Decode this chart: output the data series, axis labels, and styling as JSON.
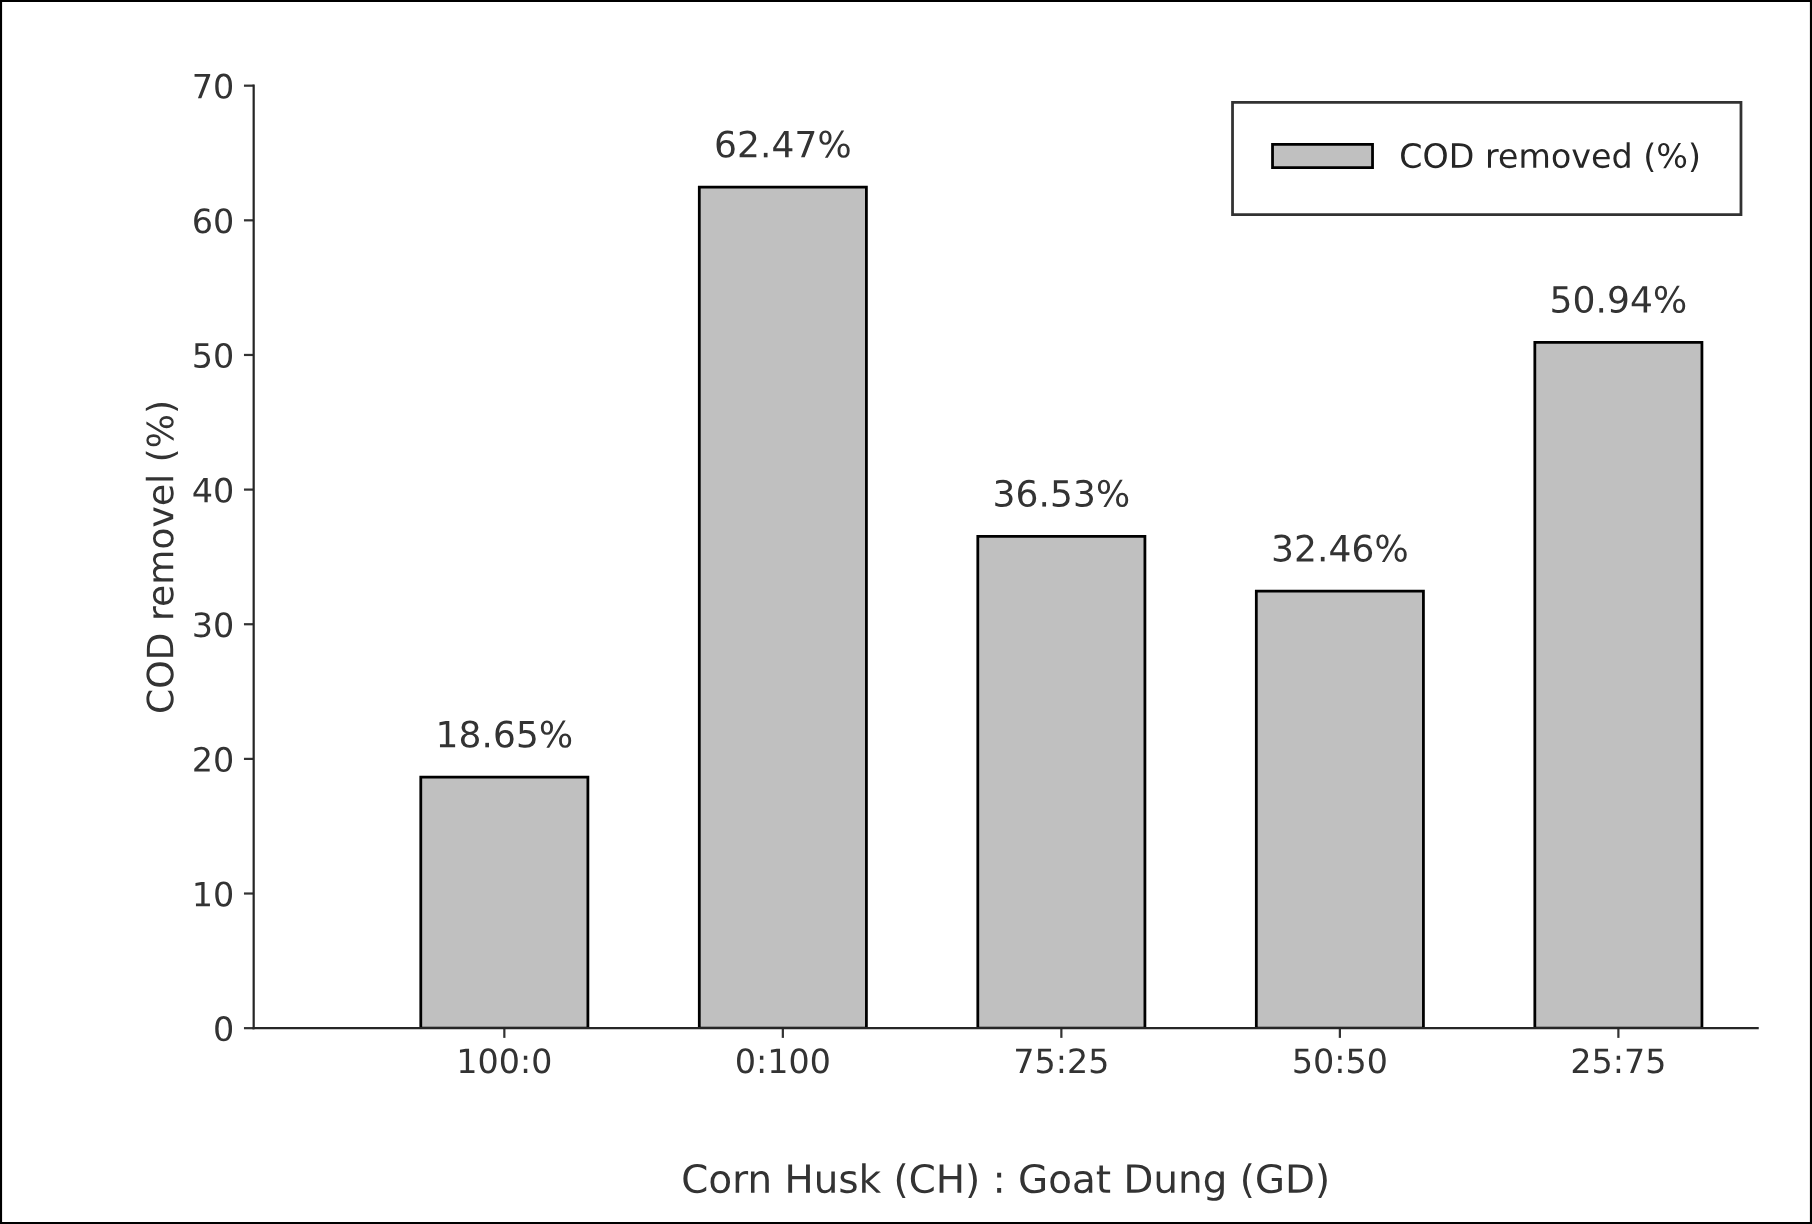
{
  "chart_data": {
    "type": "bar",
    "xlabel": "Corn Husk (CH) : Goat Dung (GD)",
    "ylabel": "COD removel (%)",
    "categories": [
      "100:0",
      "0:100",
      "75:25",
      "50:50",
      "25:75"
    ],
    "series": [
      {
        "name": "COD removed (%)",
        "color": "#c0c0c0",
        "values": [
          18.65,
          62.47,
          36.53,
          32.46,
          50.94
        ],
        "value_labels": [
          "18.65%",
          "62.47%",
          "36.53%",
          "32.46%",
          "50.94%"
        ]
      }
    ],
    "ylim": [
      0,
      70
    ],
    "yticks": [
      0,
      10,
      20,
      30,
      40,
      50,
      60,
      70
    ],
    "legend": "top right",
    "grid": false
  }
}
